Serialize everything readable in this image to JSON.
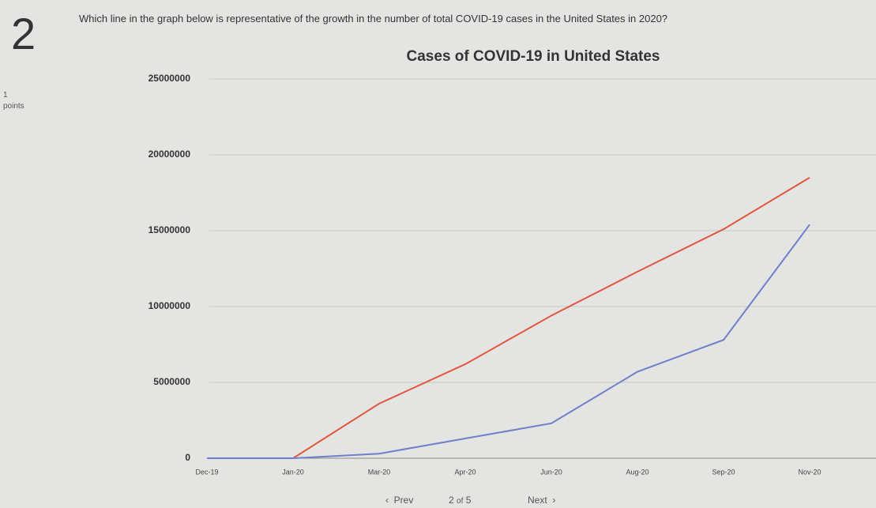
{
  "question": {
    "number": "2",
    "text": "Which line in the graph below is representative of the growth in the number of total COVID-19 cases in the United States in 2020?",
    "points": "1",
    "points_label": "points"
  },
  "chart_data": {
    "type": "line",
    "title": "Cases of COVID-19 in United States",
    "categories": [
      "Dec-19",
      "Jan-20",
      "Mar-20",
      "Apr-20",
      "Jun-20",
      "Aug-20",
      "Sep-20",
      "Nov-20"
    ],
    "series": [
      {
        "color": "#e2553f",
        "values": [
          0,
          0,
          3600000,
          6200000,
          9400000,
          12300000,
          15100000,
          18500000
        ]
      },
      {
        "color": "#6f7fc9",
        "values": [
          0,
          0,
          300000,
          1300000,
          2300000,
          5700000,
          7800000,
          15400000
        ]
      }
    ],
    "ylim": [
      0,
      25000000
    ],
    "yticks": [
      0,
      5000000,
      10000000,
      15000000,
      20000000,
      25000000
    ],
    "grid": true
  },
  "nav": {
    "prev": "Prev",
    "current": "2",
    "of": "of",
    "total": "5",
    "next": "Next"
  }
}
